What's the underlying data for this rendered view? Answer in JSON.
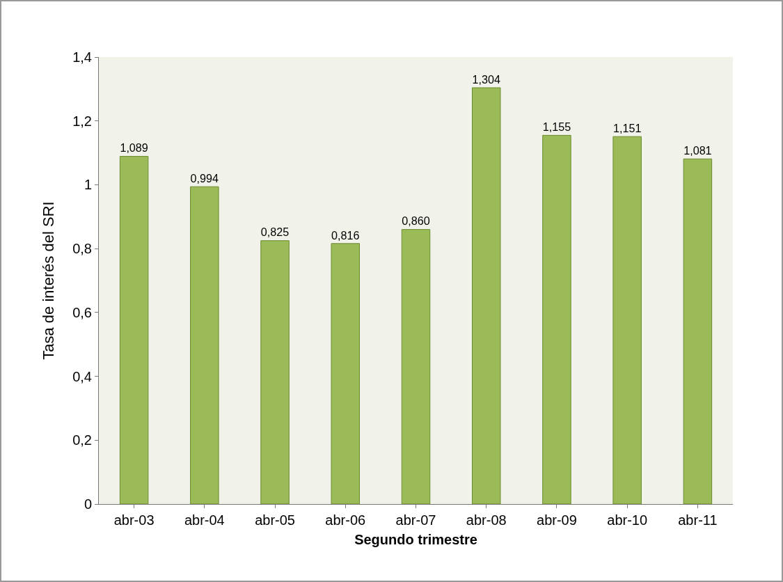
{
  "chart_data": {
    "type": "bar",
    "xlabel": "Segundo trimestre",
    "ylabel": "Tasa de interés del SRI",
    "categories": [
      "abr-03",
      "abr-04",
      "abr-05",
      "abr-06",
      "abr-07",
      "abr-08",
      "abr-09",
      "abr-10",
      "abr-11"
    ],
    "values": [
      1.089,
      0.994,
      0.825,
      0.816,
      0.86,
      1.304,
      1.155,
      1.151,
      1.081
    ],
    "value_labels": [
      "1,089",
      "0,994",
      "0,825",
      "0,816",
      "0,860",
      "1,304",
      "1,155",
      "1,151",
      "1,081"
    ],
    "color": "#9bbb59",
    "ylim": [
      0,
      1.4
    ],
    "yticks": [
      {
        "value": 0,
        "label": "0"
      },
      {
        "value": 0.2,
        "label": "0,2"
      },
      {
        "value": 0.4,
        "label": "0,4"
      },
      {
        "value": 0.6,
        "label": "0,6"
      },
      {
        "value": 0.8,
        "label": "0,8"
      },
      {
        "value": 1,
        "label": "1"
      },
      {
        "value": 1.2,
        "label": "1,2"
      },
      {
        "value": 1.4,
        "label": "1,4"
      }
    ],
    "grid": false,
    "legend": false
  }
}
